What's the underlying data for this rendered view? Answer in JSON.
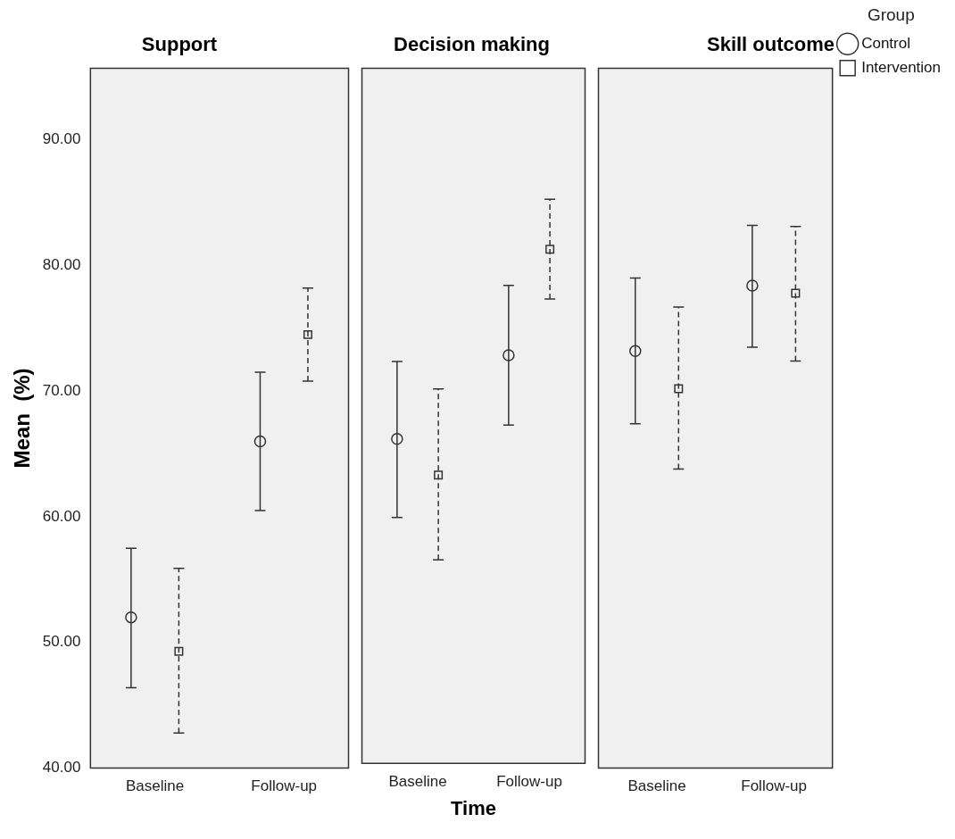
{
  "chart_data": [
    {
      "type": "scatter",
      "title": "Support",
      "ylabel": "Mean  (%)",
      "categories": [
        "Baseline",
        "Follow-up"
      ],
      "ylim": [
        40,
        95.7
      ],
      "yticks": [
        {
          "value": 40,
          "label": "40.00"
        },
        {
          "value": 50,
          "label": "50.00"
        },
        {
          "value": 60,
          "label": "60.00"
        },
        {
          "value": 70,
          "label": "70.00"
        },
        {
          "value": 80,
          "label": "80.00"
        },
        {
          "value": 90,
          "label": "90.00"
        }
      ],
      "grid": false,
      "legend": false,
      "series": [
        {
          "color": "#333333",
          "marker": "circle",
          "line_style": "solid",
          "values": [
            52.0,
            66.0
          ],
          "errors": [
            [
              46.4,
              57.5
            ],
            [
              60.5,
              71.5
            ]
          ]
        },
        {
          "color": "#333333",
          "marker": "square",
          "line_style": "dashed",
          "values": [
            49.3,
            74.5
          ],
          "errors": [
            [
              42.8,
              55.9
            ],
            [
              70.8,
              78.2
            ]
          ]
        }
      ]
    },
    {
      "type": "scatter",
      "title": "Decision making",
      "xlabel": "Time",
      "categories": [
        "Baseline",
        "Follow-up"
      ],
      "ylim": [
        40,
        95.7
      ],
      "tick_labels": "x",
      "grid": false,
      "legend": false,
      "series": [
        {
          "color": "#333333",
          "marker": "circle",
          "line_style": "solid",
          "values": [
            66.0,
            72.7
          ],
          "errors": [
            [
              59.7,
              72.2
            ],
            [
              67.1,
              78.3
            ]
          ]
        },
        {
          "color": "#333333",
          "marker": "square",
          "line_style": "dashed",
          "values": [
            63.1,
            81.2
          ],
          "errors": [
            [
              56.3,
              70.0
            ],
            [
              77.2,
              85.2
            ]
          ]
        }
      ]
    },
    {
      "type": "scatter",
      "title": "Skill outcome",
      "legend_title": "Group",
      "categories": [
        "Baseline",
        "Follow-up"
      ],
      "ylim": [
        40,
        95.7
      ],
      "tick_labels": "x",
      "grid": false,
      "legend": "top right",
      "series": [
        {
          "name": "Control",
          "color": "#333333",
          "marker": "circle",
          "line_style": "solid",
          "values": [
            73.2,
            78.4
          ],
          "errors": [
            [
              67.4,
              79.0
            ],
            [
              73.5,
              83.2
            ]
          ]
        },
        {
          "name": "Intervention",
          "color": "#333333",
          "marker": "square",
          "line_style": "dashed",
          "values": [
            70.2,
            77.8
          ],
          "errors": [
            [
              63.8,
              76.7
            ],
            [
              72.4,
              83.1
            ]
          ]
        }
      ]
    }
  ]
}
